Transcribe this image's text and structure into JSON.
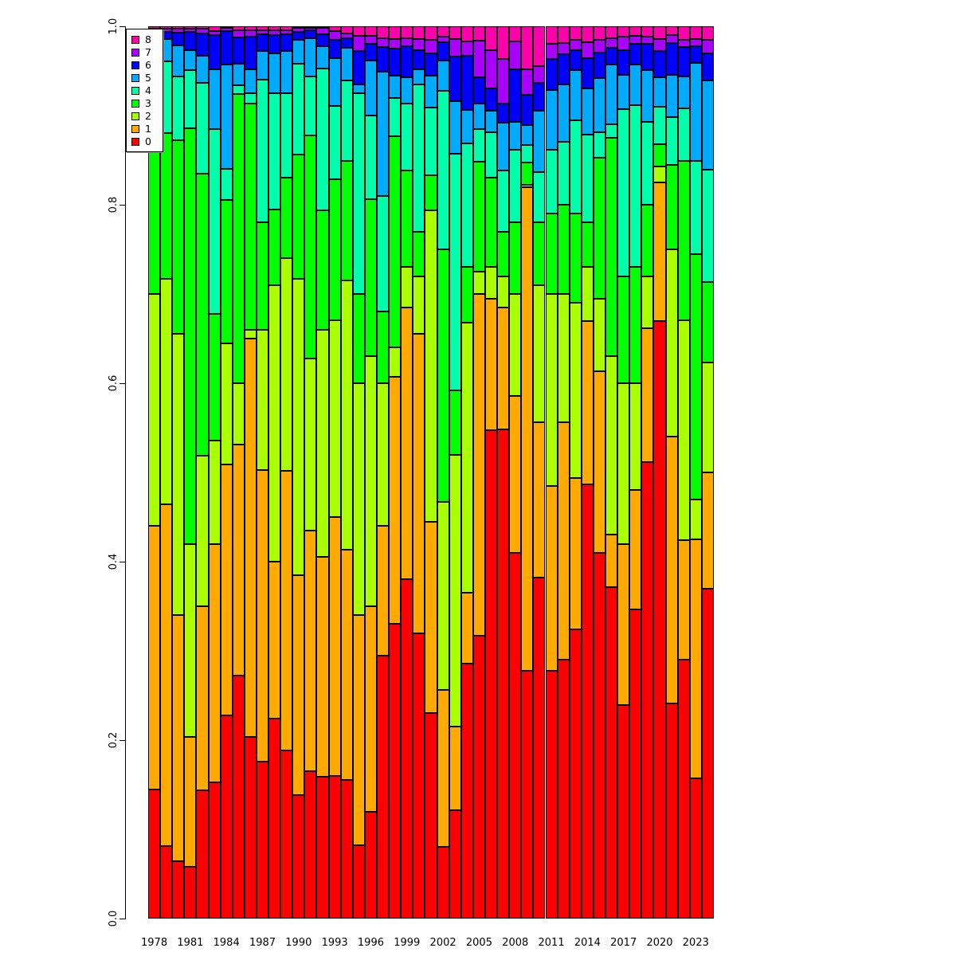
{
  "chart_data": {
    "type": "bar",
    "stacked": true,
    "orientation": "vertical",
    "title": "",
    "xlabel": "",
    "ylabel": "",
    "ylim": [
      0.0,
      1.0
    ],
    "grid": false,
    "x": [
      1978,
      1979,
      1980,
      1981,
      1982,
      1983,
      1984,
      1985,
      1986,
      1987,
      1988,
      1989,
      1990,
      1991,
      1992,
      1993,
      1994,
      1995,
      1996,
      1997,
      1998,
      1999,
      2000,
      2001,
      2002,
      2003,
      2004,
      2005,
      2006,
      2007,
      2008,
      2009,
      2010,
      2011,
      2012,
      2013,
      2014,
      2015,
      2016,
      2017,
      2018,
      2019,
      2020,
      2021,
      2022,
      2023,
      2024
    ],
    "x_tick_labels": [
      "1978",
      "1981",
      "1984",
      "1987",
      "1990",
      "1993",
      "1996",
      "1999",
      "2002",
      "2005",
      "2008",
      "2011",
      "2014",
      "2017",
      "2020",
      "2023"
    ],
    "x_tick_indices": [
      0,
      3,
      6,
      9,
      12,
      15,
      18,
      21,
      24,
      27,
      30,
      33,
      36,
      39,
      42,
      45
    ],
    "y_tick_labels": [
      "0.0",
      "0.2",
      "0.4",
      "0.6",
      "0.8",
      "1.0"
    ],
    "y_tick_values": [
      0.0,
      0.2,
      0.4,
      0.6,
      0.8,
      1.0
    ],
    "legend": {
      "position": "top-left",
      "entries_top_to_bottom": [
        "8",
        "7",
        "6",
        "5",
        "4",
        "3",
        "2",
        "1",
        "0"
      ]
    },
    "series": [
      {
        "name": "0",
        "color": "#FF0000",
        "values": [
          0.145,
          0.081,
          0.064,
          0.058,
          0.144,
          0.153,
          0.228,
          0.272,
          0.204,
          0.176,
          0.224,
          0.188,
          0.138,
          0.165,
          0.159,
          0.16,
          0.155,
          0.082,
          0.12,
          0.295,
          0.33,
          0.38,
          0.32,
          0.23,
          0.08,
          0.121,
          0.286,
          0.317,
          0.547,
          0.548,
          0.41,
          0.278,
          0.382,
          0.278,
          0.29,
          0.324,
          0.487,
          0.41,
          0.371,
          0.239,
          0.346,
          0.512,
          0.67,
          0.241,
          0.29,
          0.157,
          0.37
        ]
      },
      {
        "name": "1",
        "color": "#FFAA00",
        "values": [
          0.295,
          0.383,
          0.276,
          0.146,
          0.206,
          0.267,
          0.281,
          0.259,
          0.446,
          0.327,
          0.176,
          0.314,
          0.247,
          0.27,
          0.246,
          0.29,
          0.258,
          0.258,
          0.23,
          0.145,
          0.277,
          0.305,
          0.335,
          0.215,
          0.176,
          0.094,
          0.079,
          0.383,
          0.148,
          0.137,
          0.176,
          0.542,
          0.174,
          0.207,
          0.266,
          0.17,
          0.183,
          0.203,
          0.059,
          0.181,
          0.134,
          0.15,
          0.155,
          0.299,
          0.134,
          0.268,
          0.13
        ]
      },
      {
        "name": "2",
        "color": "#AAFF00",
        "values": [
          0.26,
          0.253,
          0.315,
          0.216,
          0.169,
          0.116,
          0.136,
          0.069,
          0.01,
          0.157,
          0.31,
          0.238,
          0.332,
          0.193,
          0.255,
          0.221,
          0.302,
          0.26,
          0.28,
          0.16,
          0.033,
          0.045,
          0.065,
          0.349,
          0.211,
          0.305,
          0.303,
          0.025,
          0.035,
          0.035,
          0.114,
          0.002,
          0.154,
          0.215,
          0.144,
          0.196,
          0.06,
          0.082,
          0.2,
          0.18,
          0.12,
          0.058,
          0.018,
          0.21,
          0.247,
          0.045,
          0.123
        ]
      },
      {
        "name": "3",
        "color": "#00FF00",
        "values": [
          0.175,
          0.163,
          0.217,
          0.466,
          0.316,
          0.142,
          0.16,
          0.324,
          0.253,
          0.12,
          0.085,
          0.09,
          0.139,
          0.25,
          0.134,
          0.158,
          0.134,
          0.1,
          0.176,
          0.08,
          0.237,
          0.108,
          0.05,
          0.039,
          0.283,
          0.072,
          0.062,
          0.123,
          0.1,
          0.05,
          0.08,
          0.025,
          0.07,
          0.09,
          0.1,
          0.1,
          0.05,
          0.158,
          0.245,
          0.12,
          0.13,
          0.08,
          0.025,
          0.095,
          0.178,
          0.275,
          0.09
        ]
      },
      {
        "name": "4",
        "color": "#00FFAA",
        "values": [
          0.08,
          0.081,
          0.072,
          0.065,
          0.102,
          0.207,
          0.035,
          0.01,
          0.012,
          0.16,
          0.13,
          0.095,
          0.102,
          0.066,
          0.159,
          0.082,
          0.09,
          0.225,
          0.094,
          0.13,
          0.043,
          0.075,
          0.165,
          0.076,
          0.178,
          0.265,
          0.139,
          0.037,
          0.051,
          0.068,
          0.082,
          0.02,
          0.057,
          0.072,
          0.071,
          0.105,
          0.099,
          0.028,
          0.015,
          0.187,
          0.182,
          0.093,
          0.042,
          0.053,
          0.059,
          0.104,
          0.126
        ]
      },
      {
        "name": "5",
        "color": "#00AAFF",
        "values": [
          0.03,
          0.025,
          0.035,
          0.022,
          0.03,
          0.067,
          0.117,
          0.024,
          0.027,
          0.032,
          0.045,
          0.047,
          0.027,
          0.043,
          0.025,
          0.053,
          0.037,
          0.01,
          0.062,
          0.139,
          0.025,
          0.03,
          0.017,
          0.036,
          0.034,
          0.059,
          0.037,
          0.028,
          0.024,
          0.054,
          0.031,
          0.022,
          0.068,
          0.067,
          0.064,
          0.056,
          0.051,
          0.061,
          0.067,
          0.039,
          0.045,
          0.058,
          0.033,
          0.048,
          0.036,
          0.11,
          0.1
        ]
      },
      {
        "name": "6",
        "color": "#0000FF",
        "values": [
          0.0085,
          0.008,
          0.014,
          0.0205,
          0.025,
          0.038,
          0.0375,
          0.03,
          0.036,
          0.019,
          0.02,
          0.0195,
          0.0085,
          0.0085,
          0.013,
          0.021,
          0.011,
          0.037,
          0.018,
          0.028,
          0.03,
          0.035,
          0.021,
          0.025,
          0.02,
          0.05,
          0.061,
          0.03,
          0.025,
          0.021,
          0.059,
          0.034,
          0.032,
          0.034,
          0.034,
          0.022,
          0.034,
          0.029,
          0.019,
          0.027,
          0.023,
          0.029,
          0.029,
          0.035,
          0.033,
          0.019,
          0.031
        ]
      },
      {
        "name": "7",
        "color": "#AA00FF",
        "values": [
          0.0035,
          0.003,
          0.004,
          0.0035,
          0.005,
          0.005,
          0.0035,
          0.008,
          0.008,
          0.005,
          0.006,
          0.0045,
          0.0045,
          0.0025,
          0.007,
          0.01,
          0.005,
          0.017,
          0.009,
          0.01,
          0.011,
          0.009,
          0.013,
          0.015,
          0.006,
          0.02,
          0.016,
          0.041,
          0.043,
          0.05,
          0.031,
          0.029,
          0.018,
          0.017,
          0.012,
          0.012,
          0.018,
          0.014,
          0.011,
          0.015,
          0.009,
          0.008,
          0.014,
          0.009,
          0.008,
          0.008,
          0.015
        ]
      },
      {
        "name": "8",
        "color": "#FF00AA",
        "values": [
          0.003,
          0.003,
          0.003,
          0.003,
          0.003,
          0.005,
          0.002,
          0.004,
          0.004,
          0.004,
          0.004,
          0.004,
          0.002,
          0.002,
          0.002,
          0.005,
          0.008,
          0.011,
          0.011,
          0.013,
          0.014,
          0.013,
          0.014,
          0.015,
          0.012,
          0.014,
          0.017,
          0.016,
          0.027,
          0.037,
          0.017,
          0.048,
          0.045,
          0.02,
          0.019,
          0.015,
          0.018,
          0.015,
          0.013,
          0.012,
          0.011,
          0.012,
          0.014,
          0.01,
          0.015,
          0.014,
          0.015
        ]
      }
    ]
  }
}
